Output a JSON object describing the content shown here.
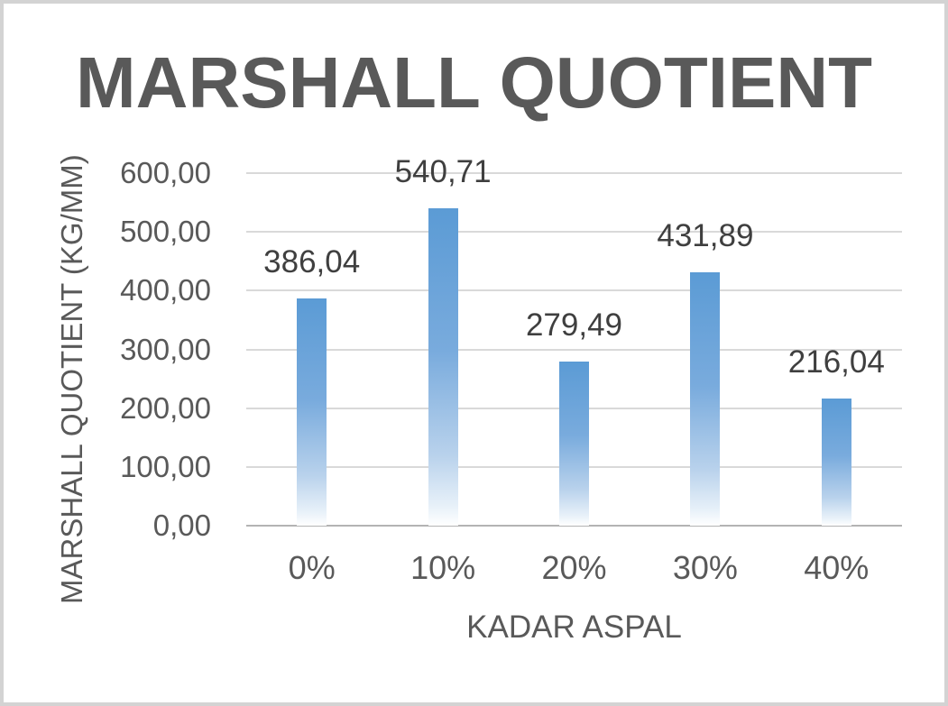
{
  "window": {
    "border_color": "#d3d3d3",
    "background": "#ffffff"
  },
  "chart_data": {
    "type": "bar",
    "title": "MARSHALL QUOTIENT",
    "xlabel": "KADAR ASPAL",
    "ylabel": "MARSHALL QUOTIENT (KG/MM)",
    "categories": [
      "0%",
      "10%",
      "20%",
      "30%",
      "40%"
    ],
    "values": [
      386.04,
      540.71,
      279.49,
      431.89,
      216.04
    ],
    "value_labels": [
      "386,04",
      "540,71",
      "279,49",
      "431,89",
      "216,04"
    ],
    "ylim": [
      0,
      600
    ],
    "yticks": [
      0,
      100,
      200,
      300,
      400,
      500,
      600
    ],
    "ytick_labels": [
      "0,00",
      "100,00",
      "200,00",
      "300,00",
      "400,00",
      "500,00",
      "600,00"
    ],
    "decimal_separator": ",",
    "grid": true,
    "legend": false,
    "data_labels_position": "outside-end",
    "colors": {
      "bar_top": "#5b9bd5",
      "bar_bottom": "#ffffff",
      "title_text": "#595959",
      "axis_text": "#595959",
      "data_label_text": "#3f3f3f",
      "gridline": "#d9d9d9",
      "axis_line": "#b3b3b3"
    }
  }
}
